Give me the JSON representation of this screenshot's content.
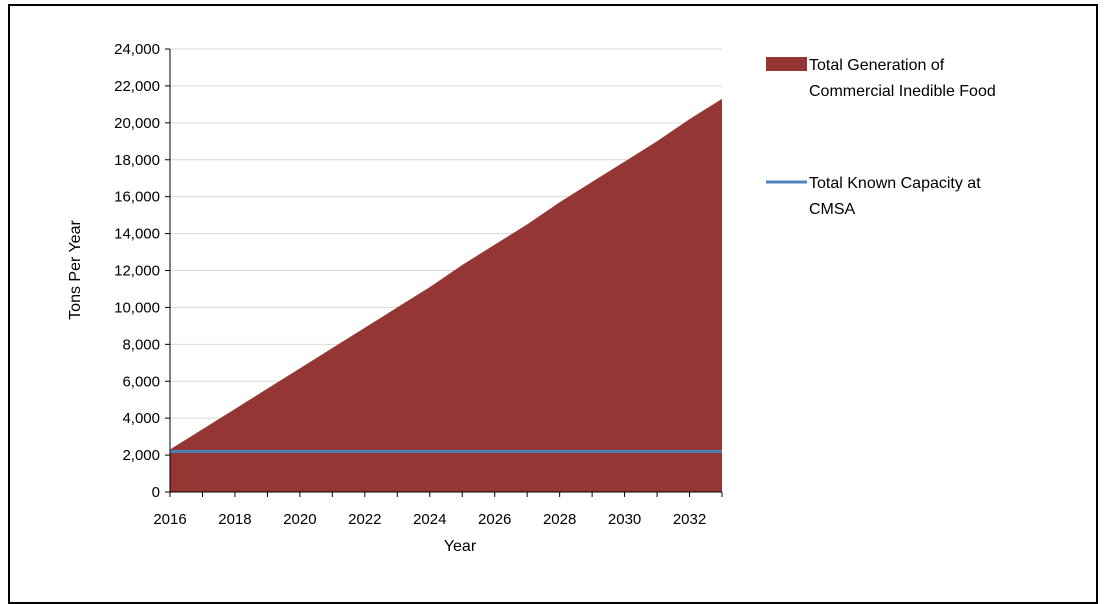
{
  "chart_data": {
    "type": "area",
    "xlabel": "Year",
    "ylabel": "Tons Per Year",
    "xlim": [
      2016,
      2033
    ],
    "ylim": [
      0,
      24000
    ],
    "x_ticks": [
      2016,
      2018,
      2020,
      2022,
      2024,
      2026,
      2028,
      2030,
      2032
    ],
    "x_tick_labels": [
      "2016",
      "2018",
      "2020",
      "2022",
      "2024",
      "2026",
      "2028",
      "2030",
      "2032"
    ],
    "y_ticks": [
      0,
      2000,
      4000,
      6000,
      8000,
      10000,
      12000,
      14000,
      16000,
      18000,
      20000,
      22000,
      24000
    ],
    "y_tick_labels": [
      "0",
      "2,000",
      "4,000",
      "6,000",
      "8,000",
      "10,000",
      "12,000",
      "14,000",
      "16,000",
      "18,000",
      "20,000",
      "22,000",
      "24,000"
    ],
    "grid": "horizontal",
    "legend_position": "right",
    "series": [
      {
        "name": "Total Generation of Commercial Inedible Food",
        "legend_lines": [
          "Total Generation of",
          "Commercial Inedible Food"
        ],
        "type": "area",
        "color": "#943634",
        "x": [
          2016,
          2017,
          2018,
          2019,
          2020,
          2021,
          2022,
          2023,
          2024,
          2025,
          2026,
          2027,
          2028,
          2029,
          2030,
          2031,
          2032,
          2033
        ],
        "values": [
          2300,
          3400,
          4500,
          5600,
          6700,
          7800,
          8900,
          10000,
          11100,
          12300,
          13400,
          14500,
          15700,
          16800,
          17900,
          19000,
          20200,
          21300
        ]
      },
      {
        "name": "Total Known Capacity at CMSA",
        "legend_lines": [
          "Total Known Capacity at",
          "CMSA"
        ],
        "type": "line",
        "color": "#4f81bd",
        "x": [
          2016,
          2033
        ],
        "values": [
          2200,
          2200
        ]
      }
    ]
  }
}
